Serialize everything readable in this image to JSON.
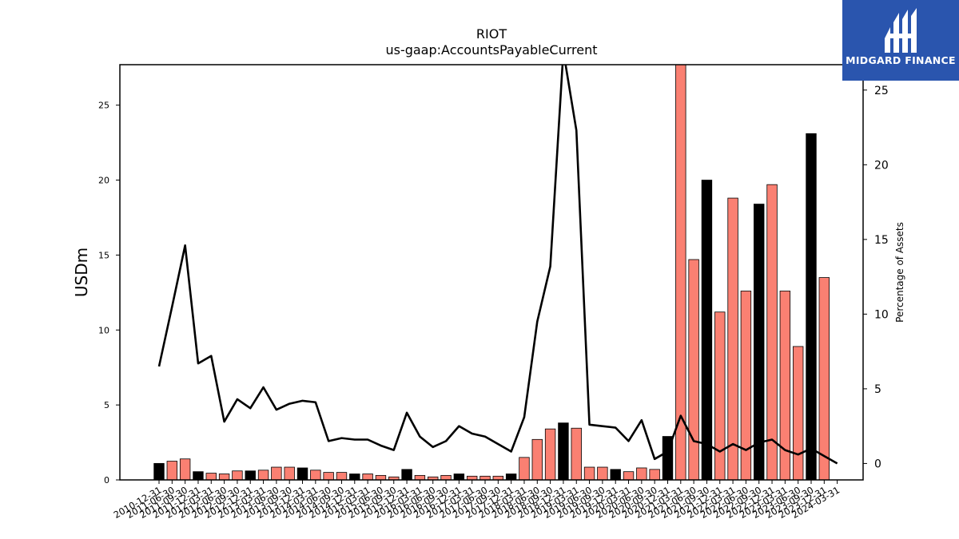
{
  "chart_data": {
    "type": "bar",
    "title": "RIOT",
    "subtitle": "us-gaap:AccountsPayableCurrent",
    "ylabel": "USDm",
    "y2label": "Percentage of Assets",
    "ylim": [
      0,
      27.7
    ],
    "y2lim": [
      -1.1,
      26.7
    ],
    "yticks": [
      0,
      5,
      10,
      15,
      20,
      25
    ],
    "y2ticks": [
      0,
      5,
      10,
      15,
      20,
      25
    ],
    "colors": {
      "annual": "#000000",
      "quarterly": "#fa8072",
      "line": "#000000"
    },
    "categories": [
      "2010-12-31",
      "2011-06-30",
      "2011-09-30",
      "2011-12-31",
      "2012-03-31",
      "2012-06-30",
      "2012-09-30",
      "2012-12-31",
      "2013-03-31",
      "2013-06-30",
      "2013-09-30",
      "2013-12-31",
      "2014-03-31",
      "2014-06-30",
      "2014-09-30",
      "2014-12-31",
      "2015-03-31",
      "2015-06-30",
      "2015-09-30",
      "2015-12-31",
      "2016-03-31",
      "2016-06-30",
      "2016-09-30",
      "2016-12-31",
      "2017-03-31",
      "2017-06-30",
      "2017-09-30",
      "2017-12-31",
      "2018-03-31",
      "2018-06-30",
      "2018-09-30",
      "2018-12-31",
      "2019-03-31",
      "2019-06-30",
      "2019-09-30",
      "2019-12-31",
      "2020-03-31",
      "2020-06-30",
      "2020-09-30",
      "2020-12-31",
      "2021-03-31",
      "2021-06-30",
      "2021-09-30",
      "2021-12-31",
      "2022-03-31",
      "2022-06-30",
      "2022-09-30",
      "2022-12-31",
      "2023-03-31",
      "2023-06-30",
      "2023-09-30",
      "2023-12-31",
      "2024-03-31"
    ],
    "series": [
      {
        "values": [
          1.1,
          1.25,
          1.4,
          0.55,
          0.45,
          0.4,
          0.6,
          0.6,
          0.65,
          0.85,
          0.85,
          0.8,
          0.65,
          0.5,
          0.5,
          0.4,
          0.4,
          0.3,
          0.2,
          0.7,
          0.3,
          0.2,
          0.3,
          0.4,
          0.25,
          0.25,
          0.25,
          0.4,
          1.5,
          2.7,
          3.4,
          3.8,
          3.45,
          0.85,
          0.85,
          0.7,
          0.55,
          0.8,
          0.7,
          2.9,
          27.8,
          14.7,
          20.0,
          11.2,
          18.8,
          12.6,
          18.4,
          19.7,
          12.6,
          8.9,
          23.1,
          13.5,
          0
        ]
      },
      {
        "values": [
          6.5,
          10.5,
          14.6,
          6.7,
          7.2,
          2.8,
          4.3,
          3.7,
          5.1,
          3.6,
          4.0,
          4.2,
          4.1,
          1.5,
          1.7,
          1.6,
          1.6,
          1.2,
          0.9,
          3.4,
          1.8,
          1.1,
          1.5,
          2.5,
          2.0,
          1.8,
          1.3,
          0.8,
          3.1,
          9.5,
          13.2,
          27.6,
          22.3,
          2.6,
          2.5,
          2.4,
          1.5,
          2.9,
          0.3,
          0.8,
          3.2,
          1.5,
          1.3,
          0.8,
          1.3,
          0.9,
          1.4,
          1.6,
          0.9,
          0.6,
          1.0,
          0.5,
          0
        ]
      }
    ],
    "bar_types": [
      "A",
      "Q",
      "Q",
      "A",
      "Q",
      "Q",
      "Q",
      "A",
      "Q",
      "Q",
      "Q",
      "A",
      "Q",
      "Q",
      "Q",
      "A",
      "Q",
      "Q",
      "Q",
      "A",
      "Q",
      "Q",
      "Q",
      "A",
      "Q",
      "Q",
      "Q",
      "A",
      "Q",
      "Q",
      "Q",
      "A",
      "Q",
      "Q",
      "Q",
      "A",
      "Q",
      "Q",
      "Q",
      "A",
      "Q",
      "Q",
      "A",
      "Q",
      "Q",
      "Q",
      "A",
      "Q",
      "Q",
      "Q",
      "A",
      "Q",
      "Q"
    ]
  },
  "logo": {
    "text": "MIDGARD FINANCE"
  }
}
